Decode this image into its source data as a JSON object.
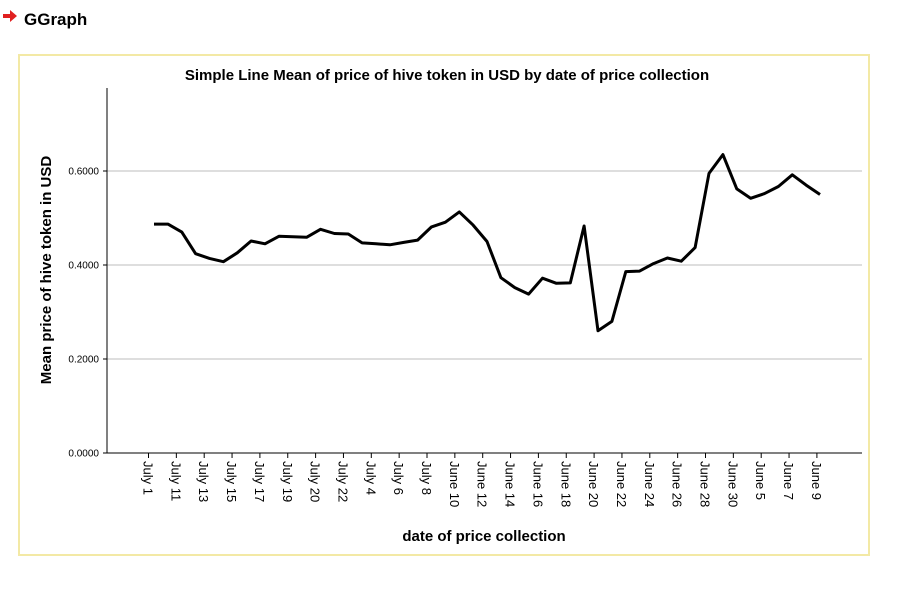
{
  "header": {
    "title": "GGraph",
    "icon": "red-arrow-icon",
    "icon_color": "#e02020"
  },
  "chart_data": {
    "type": "line",
    "title": "Simple Line Mean of price of hive token in USD by date of price collection",
    "xlabel": "date of price collection",
    "ylabel": "Mean price of hive token in USD",
    "ylim": [
      0,
      0.78
    ],
    "yticks": [
      "0.0000",
      "0.2000",
      "0.4000",
      "0.6000"
    ],
    "ytick_values": [
      0,
      0.2,
      0.4,
      0.6
    ],
    "grid": true,
    "line_color": "#000000",
    "frame_color": "#f3e9a5",
    "x_tick_labels": [
      "July 1",
      "July 11",
      "July 13",
      "July 15",
      "July 17",
      "July 19",
      "July 20",
      "July 22",
      "July 4",
      "July 6",
      "July 8",
      "June 10",
      "June 12",
      "June 14",
      "June 16",
      "June 18",
      "June 20",
      "June 22",
      "June 24",
      "June 26",
      "June 28",
      "June 30",
      "June 5",
      "June 7",
      "June 9"
    ],
    "series": [
      {
        "values": [
          0.487,
          0.487,
          0.47,
          0.424,
          0.414,
          0.407,
          0.426,
          0.451,
          0.445,
          0.461,
          0.46,
          0.459,
          0.476,
          0.467,
          0.466,
          0.447,
          0.445,
          0.443,
          0.448,
          0.453,
          0.481,
          0.491,
          0.513,
          0.485,
          0.45,
          0.373,
          0.352,
          0.338,
          0.372,
          0.361,
          0.362,
          0.483,
          0.26,
          0.28,
          0.386,
          0.387,
          0.403,
          0.415,
          0.408,
          0.437,
          0.595,
          0.635,
          0.562,
          0.542,
          0.552,
          0.567,
          0.592,
          0.57,
          0.55
        ]
      }
    ]
  }
}
